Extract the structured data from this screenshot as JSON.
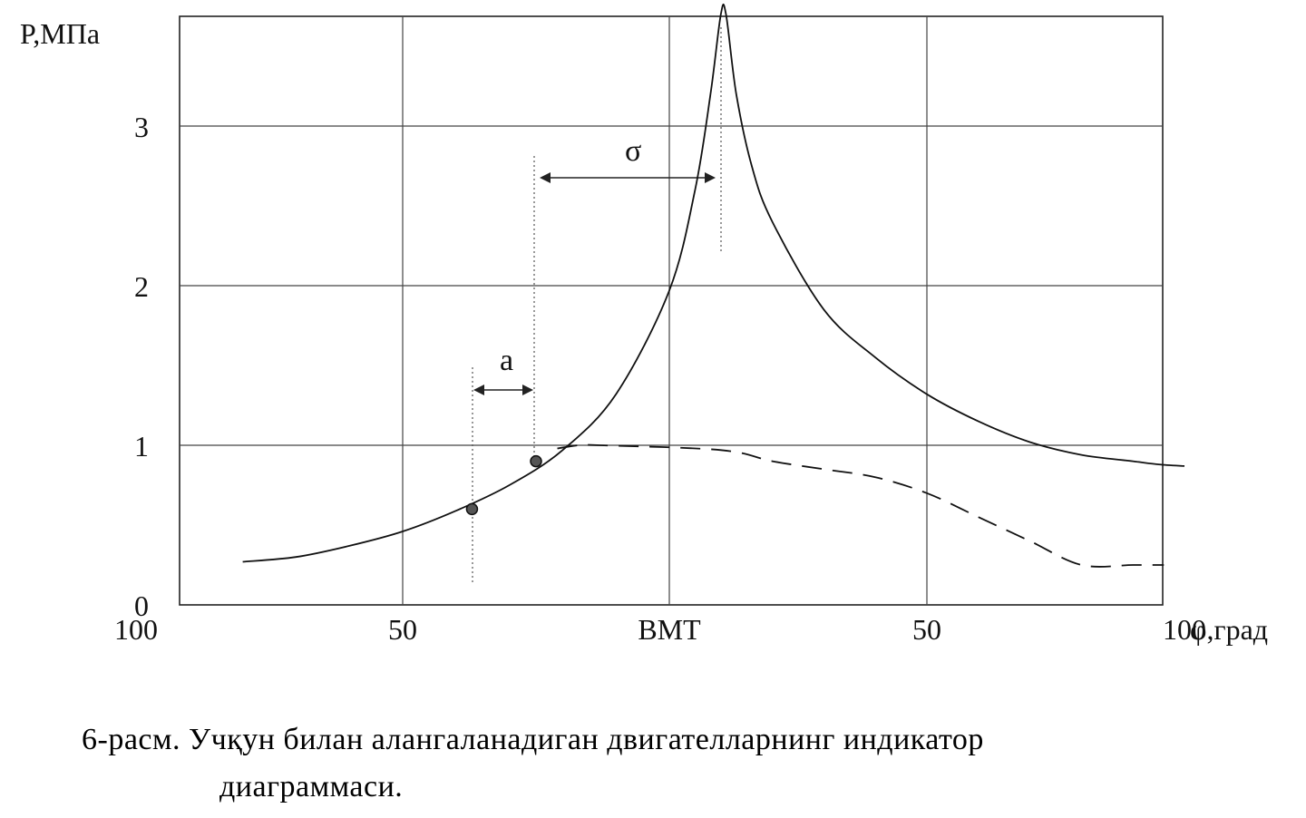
{
  "chart_data": {
    "type": "line",
    "ylabel": "P,МПа",
    "xlabel": "φ,град",
    "y_ticks": [
      "0",
      "1",
      "2",
      "3"
    ],
    "x_ticks": [
      "100",
      "50",
      "ВМТ",
      "50",
      "100"
    ],
    "x_axis": "crank angle: 100 … 50 … ВМТ … 50 … 100",
    "ylim": [
      0,
      3.7
    ],
    "grid": true,
    "annotations": [
      "σ",
      "a"
    ],
    "series": [
      {
        "style": "solid",
        "points": [
          [
            -80,
            0.27
          ],
          [
            -70,
            0.3
          ],
          [
            -60,
            0.37
          ],
          [
            -50,
            0.46
          ],
          [
            -40,
            0.59
          ],
          [
            -30,
            0.75
          ],
          [
            -20,
            0.97
          ],
          [
            -10,
            1.32
          ],
          [
            0,
            1.97
          ],
          [
            5,
            2.6
          ],
          [
            8,
            3.2
          ],
          [
            10,
            3.7
          ],
          [
            11,
            3.7
          ],
          [
            13,
            3.2
          ],
          [
            16,
            2.75
          ],
          [
            20,
            2.4
          ],
          [
            30,
            1.85
          ],
          [
            40,
            1.55
          ],
          [
            50,
            1.32
          ],
          [
            60,
            1.15
          ],
          [
            70,
            1.02
          ],
          [
            80,
            0.94
          ],
          [
            90,
            0.9
          ],
          [
            95,
            0.88
          ],
          [
            100,
            0.87
          ]
        ]
      },
      {
        "style": "dashed",
        "points": [
          [
            -21,
            0.98
          ],
          [
            -17,
            1.0
          ],
          [
            -13,
            1.0
          ],
          [
            10,
            0.97
          ],
          [
            20,
            0.9
          ],
          [
            30,
            0.85
          ],
          [
            40,
            0.8
          ],
          [
            50,
            0.7
          ],
          [
            60,
            0.55
          ],
          [
            70,
            0.4
          ],
          [
            80,
            0.25
          ],
          [
            90,
            0.25
          ],
          [
            96,
            0.25
          ]
        ]
      }
    ],
    "markers": [
      {
        "x": -37,
        "y": 0.6
      },
      {
        "x": -25,
        "y": 0.9
      }
    ]
  },
  "caption": {
    "line1": "6-расм. Учқун билан алангаланадиган двигателларнинг индикатор",
    "line2": "диаграммаси."
  }
}
